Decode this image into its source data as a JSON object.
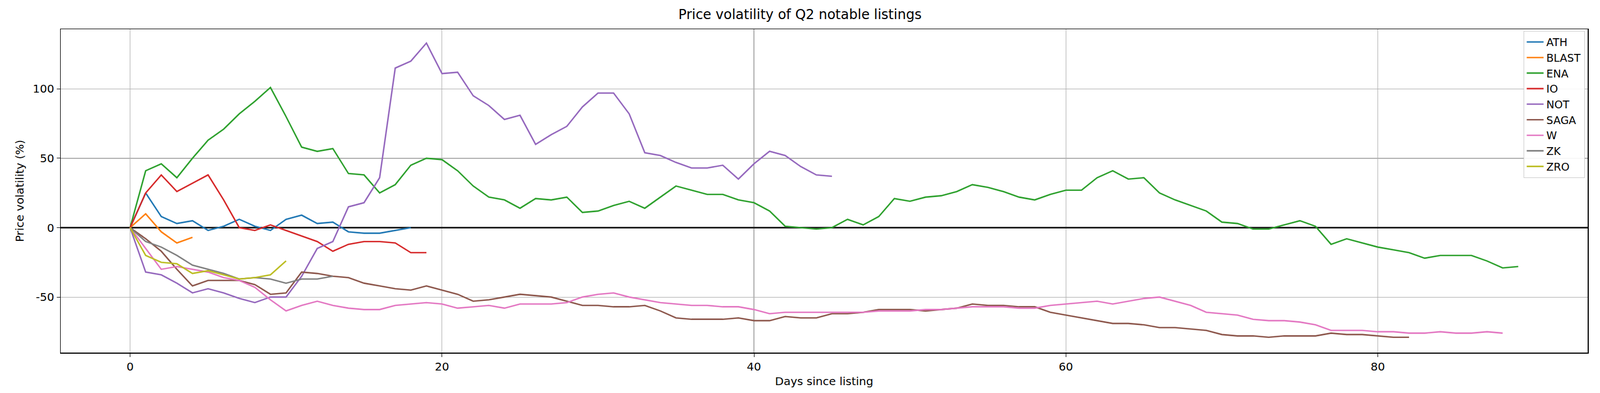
{
  "chart_data": {
    "type": "line",
    "title": "Price volatility of Q2 notable listings",
    "x_label": "Days since listing",
    "y_label": "Price volatility (%)",
    "x": [
      0,
      1,
      2,
      3,
      4,
      5,
      6,
      7,
      8,
      9,
      10,
      11,
      12,
      13,
      14,
      15,
      16,
      17,
      18,
      19,
      20,
      21,
      22,
      23,
      24,
      25,
      26,
      27,
      28,
      29,
      30,
      31,
      32,
      33,
      34,
      35,
      36,
      37,
      38,
      39,
      40,
      41,
      42,
      43,
      44,
      45,
      46,
      47,
      48,
      49,
      50,
      51,
      52,
      53,
      54,
      55,
      56,
      57,
      58,
      59,
      60,
      61,
      62,
      63,
      64,
      65,
      66,
      67,
      68,
      69,
      70,
      71,
      72,
      73,
      74,
      75,
      76,
      77,
      78,
      79,
      80,
      81,
      82,
      83,
      84,
      85,
      86,
      87,
      88,
      89
    ],
    "xlim": [
      -4.45,
      93.45
    ],
    "xticks": [
      0,
      20,
      40,
      60,
      80
    ],
    "ylim": [
      -90,
      143
    ],
    "yticks": [
      -50,
      0,
      50,
      100
    ],
    "grid": true,
    "legend": "upper right",
    "series": [
      {
        "name": "ATH",
        "color": "#1f77b4",
        "values": [
          0,
          25,
          8,
          3,
          5,
          -2,
          1,
          6,
          1,
          -2,
          6,
          9,
          3,
          4,
          -3,
          -4,
          -4,
          -2,
          0,
          null,
          null,
          null,
          null,
          null,
          null,
          null,
          null,
          null,
          null,
          null,
          null,
          null,
          null,
          null,
          null,
          null,
          null,
          null,
          null,
          null,
          null,
          null,
          null,
          null,
          null,
          null,
          null,
          null,
          null,
          null,
          null,
          null,
          null,
          null,
          null,
          null,
          null,
          null,
          null,
          null,
          null,
          null,
          null,
          null,
          null,
          null,
          null,
          null,
          null,
          null,
          null,
          null,
          null,
          null,
          null,
          null,
          null,
          null,
          null,
          null,
          null,
          null,
          null,
          null,
          null,
          null,
          null,
          null,
          null,
          null
        ]
      },
      {
        "name": "BLAST",
        "color": "#ff7f0e",
        "values": [
          0,
          10,
          -3,
          -11,
          -7,
          null,
          null,
          null,
          null,
          null,
          null,
          null,
          null,
          null,
          null,
          null,
          null,
          null,
          null,
          null,
          null,
          null,
          null,
          null,
          null,
          null,
          null,
          null,
          null,
          null,
          null,
          null,
          null,
          null,
          null,
          null,
          null,
          null,
          null,
          null,
          null,
          null,
          null,
          null,
          null,
          null,
          null,
          null,
          null,
          null,
          null,
          null,
          null,
          null,
          null,
          null,
          null,
          null,
          null,
          null,
          null,
          null,
          null,
          null,
          null,
          null,
          null,
          null,
          null,
          null,
          null,
          null,
          null,
          null,
          null,
          null,
          null,
          null,
          null,
          null,
          null,
          null,
          null,
          null,
          null,
          null,
          null,
          null,
          null,
          null
        ]
      },
      {
        "name": "ENA",
        "color": "#2ca02c",
        "values": [
          0,
          41,
          46,
          36,
          50,
          63,
          71,
          82,
          91,
          101,
          80,
          58,
          55,
          57,
          39,
          38,
          25,
          31,
          45,
          50,
          49,
          41,
          30,
          22,
          20,
          14,
          21,
          20,
          22,
          11,
          12,
          16,
          19,
          14,
          22,
          30,
          27,
          24,
          24,
          20,
          18,
          12,
          1,
          0,
          -1,
          0,
          6,
          2,
          8,
          21,
          19,
          22,
          23,
          26,
          31,
          29,
          26,
          22,
          20,
          24,
          27,
          27,
          36,
          41,
          35,
          36,
          25,
          20,
          16,
          12,
          4,
          3,
          -1,
          -1,
          2,
          5,
          1,
          -12,
          -8,
          -11,
          -14,
          -16,
          -18,
          -22,
          -20,
          -20,
          -20,
          -24,
          -29,
          -28
        ]
      },
      {
        "name": "IO",
        "color": "#d62728",
        "values": [
          0,
          25,
          38,
          26,
          32,
          38,
          20,
          0,
          -2,
          2,
          -2,
          -6,
          -10,
          -17,
          -12,
          -10,
          -10,
          -11,
          -18,
          -18,
          null,
          null,
          null,
          null,
          null,
          null,
          null,
          null,
          null,
          null,
          null,
          null,
          null,
          null,
          null,
          null,
          null,
          null,
          null,
          null,
          null,
          null,
          null,
          null,
          null,
          null,
          null,
          null,
          null,
          null,
          null,
          null,
          null,
          null,
          null,
          null,
          null,
          null,
          null,
          null,
          null,
          null,
          null,
          null,
          null,
          null,
          null,
          null,
          null,
          null,
          null,
          null,
          null,
          null,
          null,
          null,
          null,
          null,
          null,
          null,
          null,
          null,
          null,
          null,
          null,
          null,
          null,
          null,
          null,
          null
        ]
      },
      {
        "name": "NOT",
        "color": "#9467bd",
        "values": [
          0,
          -32,
          -34,
          -40,
          -47,
          -44,
          -47,
          -51,
          -54,
          -50,
          -50,
          -35,
          -15,
          -10,
          15,
          18,
          36,
          115,
          120,
          133,
          111,
          112,
          95,
          88,
          78,
          81,
          60,
          67,
          73,
          87,
          97,
          97,
          82,
          54,
          52,
          47,
          43,
          43,
          45,
          35,
          46,
          55,
          52,
          44,
          38,
          37,
          null,
          null,
          null,
          null,
          null,
          null,
          null,
          null,
          null,
          null,
          null,
          null,
          null,
          null,
          null,
          null,
          null,
          null,
          null,
          null,
          null,
          null,
          null,
          null,
          null,
          null,
          null,
          null,
          null,
          null,
          null,
          null,
          null,
          null,
          null,
          null,
          null,
          null,
          null,
          null,
          null,
          null,
          null,
          null
        ]
      },
      {
        "name": "SAGA",
        "color": "#8c564b",
        "values": [
          0,
          -8,
          -17,
          -30,
          -42,
          -38,
          -38,
          -38,
          -41,
          -48,
          -47,
          -32,
          -33,
          -35,
          -36,
          -40,
          -42,
          -44,
          -45,
          -42,
          -45,
          -48,
          -53,
          -52,
          -50,
          -48,
          -49,
          -50,
          -53,
          -56,
          -56,
          -57,
          -57,
          -56,
          -60,
          -65,
          -66,
          -66,
          -66,
          -65,
          -67,
          -67,
          -64,
          -65,
          -65,
          -62,
          -62,
          -61,
          -59,
          -59,
          -59,
          -60,
          -59,
          -58,
          -55,
          -56,
          -56,
          -57,
          -57,
          -61,
          -63,
          -65,
          -67,
          -69,
          -69,
          -70,
          -72,
          -72,
          -73,
          -74,
          -77,
          -78,
          -78,
          -79,
          -78,
          -78,
          -78,
          -76,
          -77,
          -77,
          -78,
          -79,
          -79,
          null,
          null,
          null,
          null,
          null,
          null,
          null
        ]
      },
      {
        "name": "W",
        "color": "#e377c2",
        "values": [
          0,
          -15,
          -30,
          -28,
          -30,
          -32,
          -36,
          -38,
          -43,
          -52,
          -60,
          -56,
          -53,
          -56,
          -58,
          -59,
          -59,
          -56,
          -55,
          -54,
          -55,
          -58,
          -57,
          -56,
          -58,
          -55,
          -55,
          -55,
          -54,
          -50,
          -48,
          -47,
          -50,
          -52,
          -54,
          -55,
          -56,
          -56,
          -57,
          -57,
          -59,
          -62,
          -61,
          -61,
          -61,
          -61,
          -61,
          -61,
          -60,
          -60,
          -60,
          -59,
          -59,
          -58,
          -57,
          -57,
          -57,
          -58,
          -58,
          -56,
          -55,
          -54,
          -53,
          -55,
          -53,
          -51,
          -50,
          -53,
          -56,
          -61,
          -62,
          -63,
          -66,
          -67,
          -67,
          -68,
          -70,
          -74,
          -74,
          -74,
          -75,
          -75,
          -76,
          -76,
          -75,
          -76,
          -76,
          -75,
          -76,
          null
        ]
      },
      {
        "name": "ZK",
        "color": "#7f7f7f",
        "values": [
          0,
          -10,
          -14,
          -20,
          -27,
          -30,
          -33,
          -37,
          -36,
          -37,
          -40,
          -37,
          -37,
          -35,
          null,
          null,
          null,
          null,
          null,
          null,
          null,
          null,
          null,
          null,
          null,
          null,
          null,
          null,
          null,
          null,
          null,
          null,
          null,
          null,
          null,
          null,
          null,
          null,
          null,
          null,
          null,
          null,
          null,
          null,
          null,
          null,
          null,
          null,
          null,
          null,
          null,
          null,
          null,
          null,
          null,
          null,
          null,
          null,
          null,
          null,
          null,
          null,
          null,
          null,
          null,
          null,
          null,
          null,
          null,
          null,
          null,
          null,
          null,
          null,
          null,
          null,
          null,
          null,
          null,
          null,
          null,
          null,
          null,
          null,
          null,
          null,
          null,
          null,
          null,
          null
        ]
      },
      {
        "name": "ZRO",
        "color": "#bcbd22",
        "values": [
          0,
          -20,
          -25,
          -26,
          -33,
          -31,
          -34,
          -37,
          -36,
          -34,
          -24,
          null,
          null,
          null,
          null,
          null,
          null,
          null,
          null,
          null,
          null,
          null,
          null,
          null,
          null,
          null,
          null,
          null,
          null,
          null,
          null,
          null,
          null,
          null,
          null,
          null,
          null,
          null,
          null,
          null,
          null,
          null,
          null,
          null,
          null,
          null,
          null,
          null,
          null,
          null,
          null,
          null,
          null,
          null,
          null,
          null,
          null,
          null,
          null,
          null,
          null,
          null,
          null,
          null,
          null,
          null,
          null,
          null,
          null,
          null,
          null,
          null,
          null,
          null,
          null,
          null,
          null,
          null,
          null,
          null,
          null,
          null,
          null,
          null,
          null,
          null,
          null,
          null,
          null,
          null
        ]
      }
    ]
  }
}
